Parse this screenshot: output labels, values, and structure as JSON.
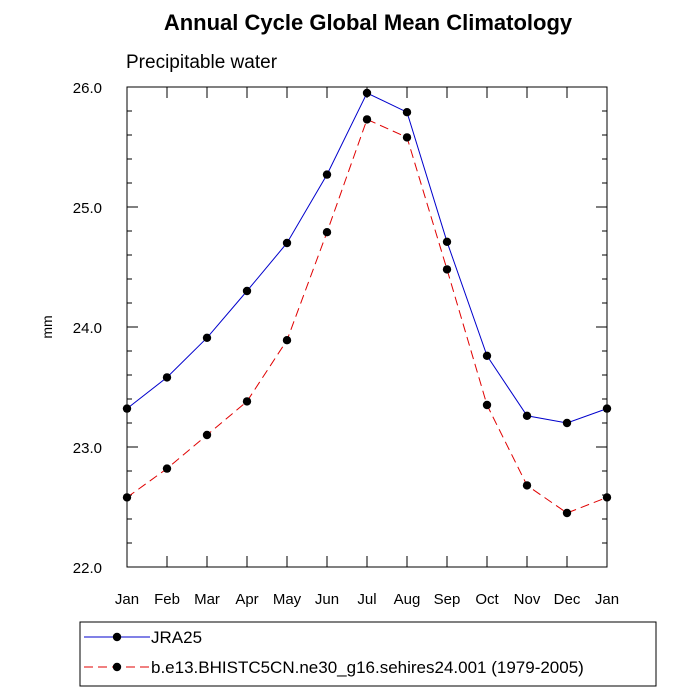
{
  "chart_data": {
    "type": "line",
    "title": "Annual Cycle Global Mean Climatology",
    "subtitle": "Precipitable water",
    "xlabel": "",
    "ylabel": "mm",
    "categories": [
      "Jan",
      "Feb",
      "Mar",
      "Apr",
      "May",
      "Jun",
      "Jul",
      "Aug",
      "Sep",
      "Oct",
      "Nov",
      "Dec",
      "Jan"
    ],
    "ylim": [
      22.0,
      26.0
    ],
    "yticks": [
      22.0,
      23.0,
      24.0,
      25.0,
      26.0
    ],
    "ytick_labels": [
      "22.0",
      "23.0",
      "24.0",
      "25.0",
      "26.0"
    ],
    "grid": false,
    "series": [
      {
        "name": "JRA25",
        "color": "#0000cc",
        "style": "solid",
        "values": [
          23.32,
          23.58,
          23.91,
          24.3,
          24.7,
          25.27,
          25.95,
          25.79,
          24.71,
          23.76,
          23.26,
          23.2,
          23.32
        ]
      },
      {
        "name": "b.e13.BHISTC5CN.ne30_g16.sehires24.001 (1979-2005)",
        "color": "#e00000",
        "style": "dashed",
        "values": [
          22.58,
          22.82,
          23.1,
          23.38,
          23.89,
          24.79,
          25.73,
          25.58,
          24.48,
          23.35,
          22.68,
          22.45,
          22.58
        ]
      }
    ],
    "legend_position": "bottom"
  }
}
